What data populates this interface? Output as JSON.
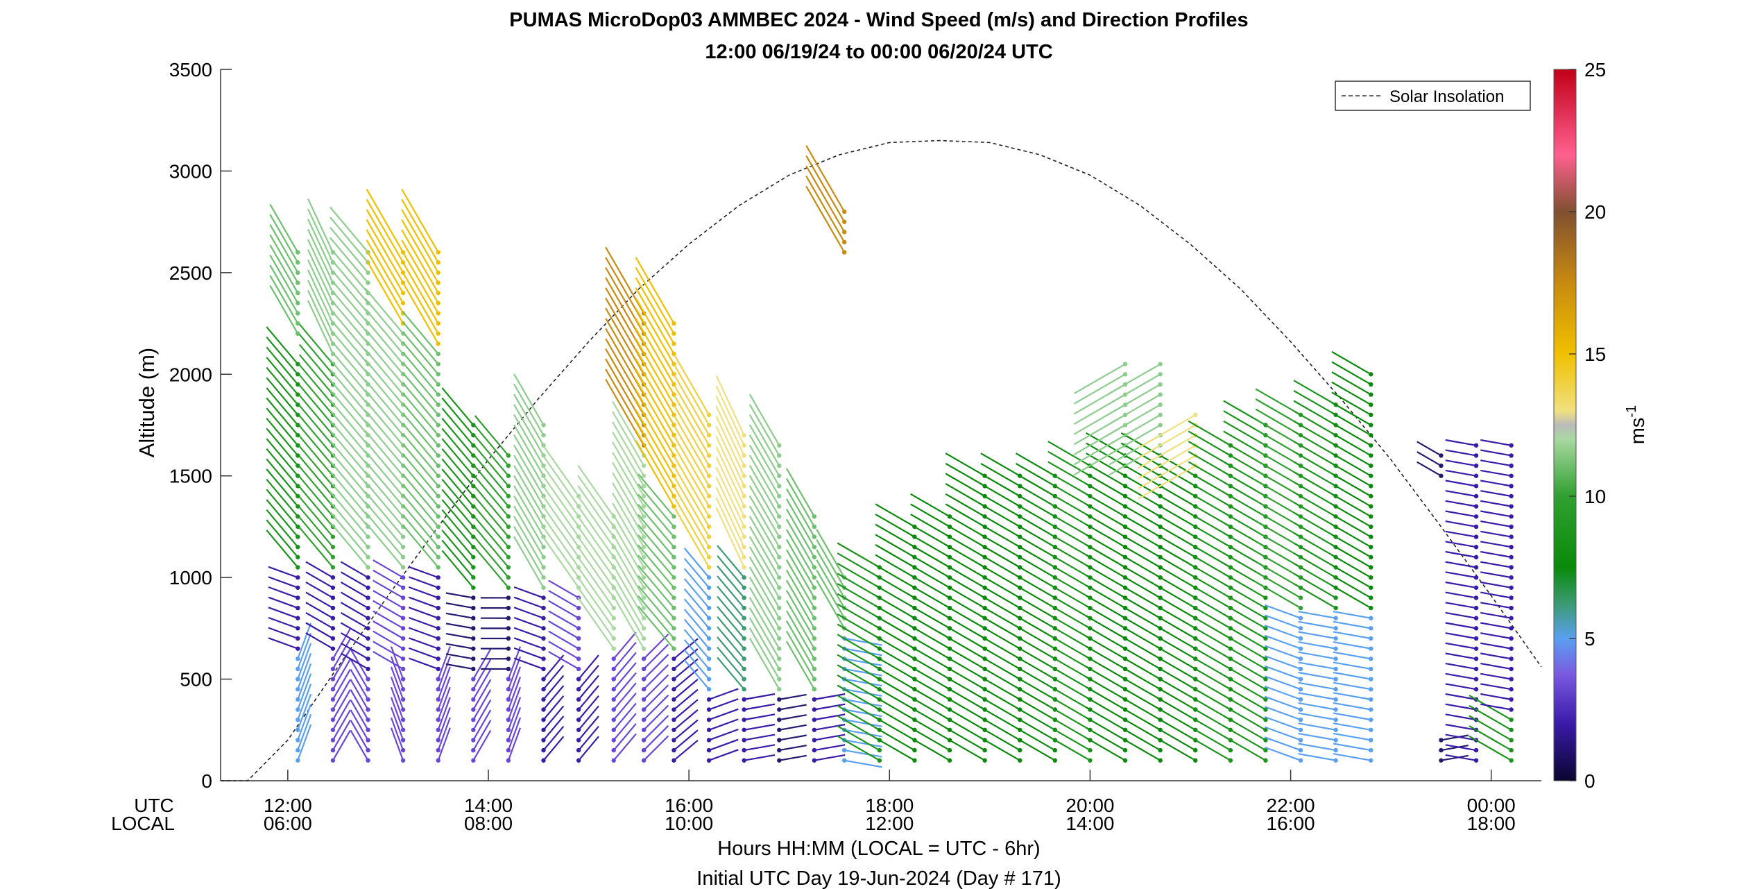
{
  "chart_data": {
    "type": "wind_barb_profile",
    "title": "PUMAS MicroDop03 AMMBEC 2024 - Wind Speed (m/s) and Direction Profiles",
    "subtitle": "12:00 06/19/24 to 00:00 06/20/24  UTC",
    "ylabel": "Altitude (m)",
    "xlabel": "Hours HH:MM  (LOCAL = UTC - 6hr)",
    "footnote": "Initial UTC Day 19-Jun-2024 (Day # 171)",
    "row_labels": [
      "UTC",
      "LOCAL"
    ],
    "ylim": [
      0,
      3500
    ],
    "yticks": [
      0,
      500,
      1000,
      1500,
      2000,
      2500,
      3000,
      3500
    ],
    "xlim": [
      11.33,
      24.5
    ],
    "xticks_hours": [
      12,
      14,
      16,
      18,
      20,
      22,
      24
    ],
    "xtick_utc": [
      "12:00",
      "14:00",
      "16:00",
      "18:00",
      "20:00",
      "22:00",
      "00:00"
    ],
    "xtick_local": [
      "06:00",
      "08:00",
      "10:00",
      "12:00",
      "14:00",
      "16:00",
      "18:00"
    ],
    "legend": {
      "entries": [
        "Solar Insolation"
      ],
      "placement": "top-right"
    },
    "colorbar": {
      "label": "ms",
      "label_exponent": "-1",
      "min": 0,
      "max": 25,
      "ticks": [
        0,
        5,
        10,
        15,
        20,
        25
      ]
    },
    "solar_insolation": {
      "x": [
        11.33,
        11.6,
        12.0,
        12.5,
        13.0,
        13.5,
        14.0,
        14.5,
        15.0,
        15.5,
        16.0,
        16.5,
        17.0,
        17.5,
        18.0,
        18.5,
        19.0,
        19.5,
        20.0,
        20.5,
        21.0,
        21.5,
        22.0,
        22.5,
        23.0,
        23.5,
        24.0,
        24.5
      ],
      "y": [
        0,
        0,
        200,
        560,
        910,
        1250,
        1580,
        1880,
        2160,
        2420,
        2640,
        2830,
        2980,
        3080,
        3140,
        3150,
        3140,
        3080,
        2980,
        2830,
        2640,
        2420,
        2160,
        1880,
        1580,
        1250,
        910,
        560
      ]
    },
    "profiles": [
      {
        "t": 12.1,
        "top": 2620,
        "segs": [
          [
            0,
            600,
            5,
            20
          ],
          [
            600,
            1000,
            3,
            290
          ],
          [
            1000,
            2050,
            8,
            320
          ],
          [
            2200,
            2700,
            10,
            330
          ]
        ]
      },
      {
        "t": 12.45,
        "top": 2600,
        "segs": [
          [
            0,
            600,
            4,
            30
          ],
          [
            600,
            1000,
            3,
            300
          ],
          [
            1000,
            2050,
            9,
            320
          ],
          [
            2100,
            2600,
            11,
            335
          ]
        ]
      },
      {
        "t": 12.8,
        "top": 2600,
        "segs": [
          [
            0,
            500,
            4,
            330
          ],
          [
            500,
            1000,
            3,
            300
          ],
          [
            1000,
            2600,
            11,
            320
          ]
        ]
      },
      {
        "t": 13.15,
        "top": 2600,
        "segs": [
          [
            0,
            500,
            4,
            340
          ],
          [
            500,
            1000,
            4,
            300
          ],
          [
            1000,
            2200,
            11,
            320
          ],
          [
            2200,
            2600,
            15,
            330
          ]
        ]
      },
      {
        "t": 13.5,
        "top": 2600,
        "segs": [
          [
            0,
            500,
            4,
            20
          ],
          [
            500,
            1000,
            3,
            290
          ],
          [
            1000,
            2100,
            10,
            320
          ],
          [
            2100,
            2600,
            15,
            330
          ]
        ]
      },
      {
        "t": 13.85,
        "top": 1750,
        "segs": [
          [
            0,
            500,
            4,
            30
          ],
          [
            500,
            900,
            2,
            280
          ],
          [
            900,
            1750,
            8,
            320
          ]
        ]
      },
      {
        "t": 14.2,
        "top": 1600,
        "segs": [
          [
            0,
            500,
            4,
            20
          ],
          [
            500,
            900,
            2,
            270
          ],
          [
            900,
            1600,
            9,
            320
          ]
        ]
      },
      {
        "t": 14.55,
        "top": 1750,
        "segs": [
          [
            0,
            500,
            3,
            40
          ],
          [
            500,
            900,
            3,
            290
          ],
          [
            900,
            1750,
            11,
            330
          ]
        ]
      },
      {
        "t": 14.9,
        "top": 1400,
        "segs": [
          [
            0,
            500,
            3,
            40
          ],
          [
            500,
            900,
            4,
            300
          ],
          [
            900,
            1400,
            12,
            325
          ]
        ]
      },
      {
        "t": 15.25,
        "top": 1300,
        "segs": [
          [
            0,
            600,
            4,
            40
          ],
          [
            600,
            1300,
            12,
            325
          ]
        ]
      },
      {
        "t": 15.55,
        "top": 2300,
        "segs": [
          [
            0,
            600,
            4,
            45
          ],
          [
            600,
            1600,
            12,
            330
          ],
          [
            1600,
            2300,
            17,
            330
          ]
        ]
      },
      {
        "t": 15.85,
        "top": 2250,
        "segs": [
          [
            0,
            600,
            3,
            50
          ],
          [
            600,
            1300,
            10,
            320
          ],
          [
            1300,
            2250,
            16,
            330
          ]
        ]
      },
      {
        "t": 16.2,
        "top": 1820,
        "segs": [
          [
            0,
            400,
            3,
            70
          ],
          [
            400,
            1000,
            5,
            320
          ],
          [
            1000,
            1820,
            14,
            330
          ]
        ]
      },
      {
        "t": 16.55,
        "top": 1700,
        "segs": [
          [
            0,
            400,
            3,
            80
          ],
          [
            400,
            1000,
            6,
            320
          ],
          [
            1000,
            1700,
            13,
            335
          ]
        ]
      },
      {
        "t": 16.9,
        "top": 1650,
        "segs": [
          [
            0,
            400,
            2,
            80
          ],
          [
            400,
            1650,
            11,
            330
          ]
        ]
      },
      {
        "t": 17.25,
        "top": 1300,
        "segs": [
          [
            0,
            400,
            3,
            80
          ],
          [
            400,
            1300,
            10,
            330
          ]
        ]
      },
      {
        "t": 17.55,
        "top": 2800,
        "segs": [
          [
            0,
            700,
            5,
            100
          ],
          [
            700,
            1000,
            10,
            330
          ],
          [
            2600,
            2800,
            18,
            330
          ]
        ]
      },
      {
        "t": 17.9,
        "top": 1050,
        "segs": [
          [
            0,
            1050,
            8,
            300
          ]
        ]
      },
      {
        "t": 18.25,
        "top": 1250,
        "segs": [
          [
            0,
            1250,
            7,
            300
          ]
        ]
      },
      {
        "t": 18.6,
        "top": 1300,
        "segs": [
          [
            0,
            1300,
            7,
            300
          ]
        ]
      },
      {
        "t": 18.95,
        "top": 1500,
        "segs": [
          [
            0,
            1500,
            7,
            300
          ]
        ]
      },
      {
        "t": 19.3,
        "top": 1500,
        "segs": [
          [
            0,
            1500,
            7,
            300
          ]
        ]
      },
      {
        "t": 19.65,
        "top": 1500,
        "segs": [
          [
            0,
            1500,
            7,
            300
          ]
        ]
      },
      {
        "t": 20.0,
        "top": 1550,
        "segs": [
          [
            0,
            1550,
            8,
            300
          ]
        ]
      },
      {
        "t": 20.35,
        "top": 2050,
        "segs": [
          [
            0,
            1600,
            7,
            300
          ],
          [
            1600,
            2050,
            11,
            240
          ]
        ]
      },
      {
        "t": 20.7,
        "top": 2050,
        "segs": [
          [
            0,
            1600,
            7,
            300
          ],
          [
            1600,
            2050,
            11,
            240
          ]
        ]
      },
      {
        "t": 21.05,
        "top": 1800,
        "segs": [
          [
            0,
            1500,
            7,
            300
          ],
          [
            1500,
            1800,
            13,
            240
          ]
        ]
      },
      {
        "t": 21.4,
        "top": 1650,
        "segs": [
          [
            0,
            1650,
            8,
            300
          ]
        ]
      },
      {
        "t": 21.75,
        "top": 1750,
        "segs": [
          [
            0,
            1750,
            8,
            300
          ]
        ]
      },
      {
        "t": 22.1,
        "top": 1800,
        "segs": [
          [
            0,
            800,
            5,
            290
          ],
          [
            800,
            1800,
            9,
            300
          ]
        ]
      },
      {
        "t": 22.45,
        "top": 1850,
        "segs": [
          [
            0,
            800,
            5,
            280
          ],
          [
            800,
            1850,
            8,
            300
          ]
        ]
      },
      {
        "t": 22.8,
        "top": 2000,
        "segs": [
          [
            0,
            800,
            5,
            280
          ],
          [
            800,
            2000,
            7,
            300
          ]
        ]
      },
      {
        "t": 23.5,
        "top": 1600,
        "segs": [
          [
            0,
            200,
            2,
            80
          ],
          [
            1500,
            1600,
            2,
            300
          ]
        ]
      },
      {
        "t": 23.85,
        "top": 1650,
        "segs": [
          [
            0,
            1650,
            3,
            280
          ]
        ]
      },
      {
        "t": 24.2,
        "top": 1650,
        "segs": [
          [
            0,
            300,
            8,
            300
          ],
          [
            300,
            1650,
            3,
            280
          ]
        ]
      }
    ]
  }
}
